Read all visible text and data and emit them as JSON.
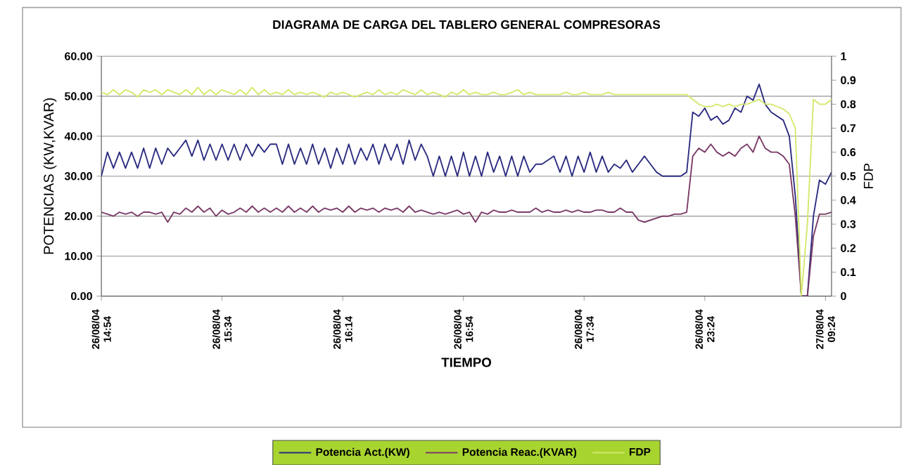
{
  "chart_data": {
    "type": "line",
    "title": "DIAGRAMA DE CARGA DEL TABLERO GENERAL COMPRESORAS",
    "xlabel": "TIEMPO",
    "ylabel": "POTENCIAS (KW,KVAR)",
    "y2label": "FDP",
    "categories": [
      "26/08/04 14:54",
      null,
      null,
      null,
      null,
      null,
      null,
      null,
      null,
      null,
      null,
      null,
      null,
      null,
      null,
      null,
      null,
      null,
      null,
      null,
      "26/08/04 15:34",
      null,
      null,
      null,
      null,
      null,
      null,
      null,
      null,
      null,
      null,
      null,
      null,
      null,
      null,
      null,
      null,
      null,
      null,
      null,
      "26/08/04 16:14",
      null,
      null,
      null,
      null,
      null,
      null,
      null,
      null,
      null,
      null,
      null,
      null,
      null,
      null,
      null,
      null,
      null,
      null,
      null,
      "26/08/04 16:54",
      null,
      null,
      null,
      null,
      null,
      null,
      null,
      null,
      null,
      null,
      null,
      null,
      null,
      null,
      null,
      null,
      null,
      null,
      null,
      "26/08/04 17:34",
      null,
      null,
      null,
      null,
      null,
      null,
      null,
      null,
      null,
      null,
      null,
      null,
      null,
      null,
      null,
      null,
      null,
      null,
      null,
      "26/08/04 23:24",
      null,
      null,
      null,
      null,
      null,
      null,
      null,
      null,
      null,
      null,
      null,
      null,
      null,
      null,
      null,
      null,
      null,
      null,
      null,
      "27/08/04 09:24",
      null
    ],
    "ylim": [
      0,
      60
    ],
    "yticks": [
      {
        "value": 0,
        "label": "0.00"
      },
      {
        "value": 10,
        "label": "10.00"
      },
      {
        "value": 20,
        "label": "20.00"
      },
      {
        "value": 30,
        "label": "30.00"
      },
      {
        "value": 40,
        "label": "40.00"
      },
      {
        "value": 50,
        "label": "50.00"
      },
      {
        "value": 60,
        "label": "60.00"
      }
    ],
    "y2lim": [
      0,
      1
    ],
    "y2ticks": [
      0,
      0.1,
      0.2,
      0.3,
      0.4,
      0.5,
      0.6,
      0.7,
      0.8,
      0.9,
      1
    ],
    "grid": "y",
    "legend": "bottom",
    "marker": "none",
    "line_style": "solid",
    "series": [
      {
        "name": "Potencia Act.(KW)",
        "color": "#2b2b80",
        "values": [
          30,
          36,
          32,
          36,
          32,
          36,
          32,
          37,
          32,
          37,
          33,
          37,
          35,
          37,
          39,
          35,
          39,
          34,
          38,
          34,
          38,
          34,
          38,
          34,
          38,
          35,
          38,
          36,
          38,
          38,
          33,
          38,
          33,
          37,
          33,
          38,
          33,
          37,
          32,
          37,
          33,
          38,
          33,
          37,
          34,
          38,
          33,
          38,
          34,
          38,
          33,
          39,
          34,
          38,
          35,
          30,
          35,
          30,
          35,
          30,
          36,
          30,
          35,
          30,
          36,
          31,
          35,
          30,
          35,
          30,
          35,
          31,
          33,
          33,
          34,
          35,
          31,
          35,
          30,
          35,
          31,
          36,
          31,
          35,
          31,
          33,
          32,
          34,
          31,
          33,
          35,
          33,
          31,
          30,
          30,
          30,
          30,
          31,
          46,
          45,
          47,
          44,
          45,
          43,
          44,
          47,
          46,
          50,
          49,
          53,
          48,
          46,
          45,
          44,
          40,
          25,
          0,
          0,
          20,
          29,
          28,
          31
        ]
      },
      {
        "name": "Potencia Reac.(KVAR)",
        "color": "#7a3a66",
        "values": [
          21,
          20.5,
          20,
          21,
          20.5,
          21,
          20,
          21,
          21,
          20.5,
          21,
          18.5,
          21,
          20.5,
          22,
          21,
          22.5,
          21,
          22,
          20,
          21.5,
          20.5,
          21,
          22,
          21,
          22.5,
          21,
          22,
          21,
          22,
          21,
          22.5,
          21,
          22,
          21,
          22.5,
          21,
          22,
          21.5,
          22,
          21,
          22.5,
          21,
          22,
          21.5,
          22,
          21,
          22,
          21.5,
          22,
          21,
          22.5,
          21,
          21.5,
          21,
          20.5,
          21,
          20.5,
          21,
          21.5,
          20.5,
          21,
          18.5,
          21,
          20.5,
          21.5,
          21,
          21,
          21.5,
          21,
          21,
          21,
          22,
          21,
          21.5,
          21,
          21,
          21.5,
          21,
          21.5,
          21,
          21,
          21.5,
          21.5,
          21,
          21,
          22,
          21,
          21,
          19,
          18.5,
          19,
          19.5,
          20,
          20,
          20.5,
          20.5,
          21,
          35,
          37,
          36,
          38,
          36,
          35,
          36,
          35,
          37,
          38,
          36,
          40,
          37,
          36,
          36,
          35,
          33,
          20,
          0,
          0,
          15,
          20.5,
          20.5,
          21
        ]
      },
      {
        "name": "FDP",
        "color": "#d4e86a",
        "axis": "y2",
        "values": [
          0.85,
          0.84,
          0.86,
          0.84,
          0.86,
          0.85,
          0.83,
          0.86,
          0.85,
          0.86,
          0.84,
          0.86,
          0.85,
          0.84,
          0.86,
          0.84,
          0.87,
          0.84,
          0.86,
          0.84,
          0.86,
          0.85,
          0.84,
          0.86,
          0.84,
          0.87,
          0.84,
          0.86,
          0.84,
          0.85,
          0.84,
          0.86,
          0.84,
          0.85,
          0.84,
          0.85,
          0.84,
          0.83,
          0.85,
          0.84,
          0.85,
          0.84,
          0.83,
          0.84,
          0.85,
          0.84,
          0.86,
          0.84,
          0.85,
          0.84,
          0.86,
          0.85,
          0.84,
          0.86,
          0.84,
          0.85,
          0.84,
          0.83,
          0.85,
          0.84,
          0.86,
          0.84,
          0.85,
          0.84,
          0.84,
          0.85,
          0.84,
          0.84,
          0.85,
          0.86,
          0.84,
          0.85,
          0.84,
          0.84,
          0.84,
          0.84,
          0.84,
          0.85,
          0.84,
          0.84,
          0.85,
          0.84,
          0.84,
          0.84,
          0.85,
          0.84,
          0.84,
          0.84,
          0.84,
          0.84,
          0.84,
          0.84,
          0.84,
          0.84,
          0.84,
          0.84,
          0.84,
          0.84,
          0.82,
          0.8,
          0.79,
          0.79,
          0.8,
          0.79,
          0.8,
          0.79,
          0.8,
          0.8,
          0.81,
          0.82,
          0.8,
          0.8,
          0.79,
          0.78,
          0.76,
          0.7,
          0,
          0.3,
          0.82,
          0.8,
          0.8,
          0.82
        ]
      }
    ]
  }
}
